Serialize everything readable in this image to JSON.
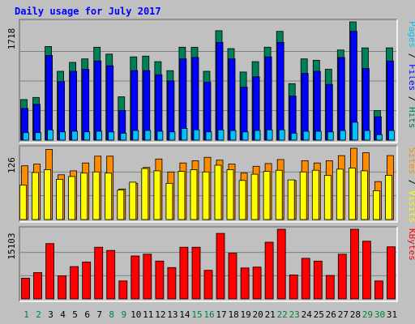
{
  "chart_data": {
    "type": "bar",
    "title": "Daily usage for July 2017",
    "categories": [
      "1",
      "2",
      "3",
      "4",
      "5",
      "6",
      "7",
      "8",
      "9",
      "10",
      "11",
      "12",
      "13",
      "14",
      "15",
      "16",
      "17",
      "18",
      "19",
      "20",
      "21",
      "22",
      "23",
      "24",
      "25",
      "26",
      "27",
      "28",
      "29",
      "30",
      "31"
    ],
    "weekend_days": [
      "1",
      "2",
      "8",
      "9",
      "15",
      "16",
      "22",
      "23",
      "29",
      "30"
    ],
    "colors": {
      "hits": "#00805a",
      "files": "#0000ff",
      "pages": "#00c0ff",
      "visits": "#ffff00",
      "sites": "#ff8c00",
      "kbytes": "#ff0000",
      "weekday_label": "#000000",
      "weekend_label": "#008040",
      "panel_bg": "#c0c0c0",
      "gridline": "#808080",
      "title": "#0000ff"
    },
    "panels": [
      {
        "ymax_label": "1718",
        "ymax": 1718,
        "legend": [
          {
            "text": "Pages",
            "color": "#00c0ff"
          },
          {
            "text": " / ",
            "color": "#000000"
          },
          {
            "text": "Files",
            "color": "#0000ff"
          },
          {
            "text": " / ",
            "color": "#000000"
          },
          {
            "text": "Hits",
            "color": "#00805a"
          }
        ],
        "series": [
          {
            "name": "Hits",
            "values": [
              590,
              620,
              1360,
              1000,
              1130,
              1180,
              1350,
              1250,
              630,
              1210,
              1220,
              1140,
              1010,
              1350,
              1350,
              1000,
              1590,
              1330,
              990,
              1140,
              1350,
              1580,
              820,
              1180,
              1160,
              1030,
              1310,
              1718,
              1340,
              430,
              1340
            ]
          },
          {
            "name": "Files",
            "values": [
              460,
              520,
              1230,
              850,
              1000,
              1030,
              1150,
              1080,
              430,
              1010,
              1010,
              950,
              860,
              1180,
              1200,
              840,
              1420,
              1180,
              770,
              920,
              1210,
              1420,
              640,
              970,
              1000,
              810,
              1200,
              1580,
              1040,
              340,
              1150
            ]
          },
          {
            "name": "Pages",
            "values": [
              110,
              110,
              150,
              120,
              130,
              120,
              130,
              120,
              100,
              140,
              140,
              130,
              120,
              170,
              150,
              120,
              150,
              140,
              120,
              140,
              150,
              150,
              100,
              130,
              130,
              120,
              140,
              260,
              140,
              80,
              140
            ]
          }
        ]
      },
      {
        "ymax_label": "126",
        "ymax": 126,
        "legend": [
          {
            "text": "Sites",
            "color": "#ff8c00"
          },
          {
            "text": " / ",
            "color": "#000000"
          },
          {
            "text": "Visits",
            "color": "#ffff00"
          }
        ],
        "series": [
          {
            "name": "Visits",
            "values": [
              61,
              83,
              88,
              71,
              76,
              82,
              84,
              82,
              52,
              66,
              90,
              86,
              64,
              85,
              88,
              84,
              96,
              88,
              69,
              80,
              85,
              87,
              70,
              84,
              87,
              78,
              89,
              91,
              86,
              51,
              78
            ]
          },
          {
            "name": "Sites",
            "values": [
              95,
              98,
              124,
              79,
              86,
              100,
              112,
              112,
              54,
              64,
              92,
              107,
              84,
              100,
              104,
              110,
              105,
              98,
              82,
              94,
              99,
              106,
              69,
              104,
              100,
              104,
              113,
              126,
              118,
              67,
              113
            ]
          }
        ]
      },
      {
        "ymax_label": "15103",
        "ymax": 15103,
        "legend": [
          {
            "text": "KBytes",
            "color": "#ff0000"
          }
        ],
        "series": [
          {
            "name": "KBytes",
            "values": [
              4500,
              5700,
              12000,
              5000,
              7000,
              8000,
              11200,
              10500,
              3900,
              9300,
              9700,
              8200,
              6800,
              11200,
              11200,
              6200,
              14200,
              9900,
              6700,
              6900,
              12300,
              15103,
              5200,
              8800,
              8200,
              5100,
              9700,
              15103,
              12500,
              3900,
              11300
            ]
          }
        ]
      }
    ]
  }
}
